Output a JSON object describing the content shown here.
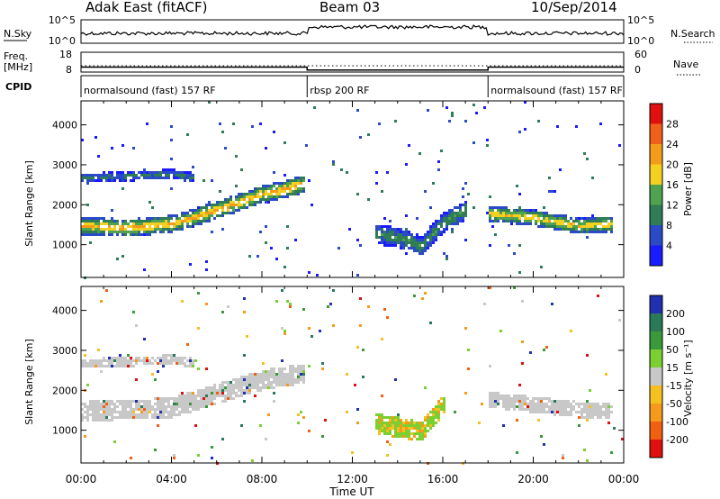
{
  "header": {
    "title": "Adak East (fitACF)",
    "beam": "Beam 03",
    "date": "10/Sep/2014"
  },
  "left_labels": {
    "nsky": "N.Sky",
    "freq": "Freq.",
    "freq_unit": "[MHz]",
    "cpid": "CPID"
  },
  "right_labels": {
    "nsearch": "N.Search",
    "nave": "Nave"
  },
  "noise_axis": {
    "left_ticks": [
      "10^5",
      "10^0"
    ],
    "right_ticks": [
      "10^5",
      "10^0"
    ]
  },
  "freq_axis": {
    "left_ticks": [
      "18",
      "8"
    ],
    "right_ticks": [
      "60",
      "0"
    ]
  },
  "cpid_segments": [
    {
      "label": "normalsound (fast) 157 RF",
      "start_hour": 0,
      "end_hour": 10
    },
    {
      "label": "rbsp 200 RF",
      "start_hour": 10,
      "end_hour": 18
    },
    {
      "label": "normalsound (fast) 157 RF",
      "start_hour": 18,
      "end_hour": 24
    }
  ],
  "power_panel": {
    "ylabel": "Slant Range [km]",
    "yticks": [
      1000,
      2000,
      3000,
      4000
    ],
    "colorbar_label": "Power [dB]",
    "colorbar_ticks": [
      4,
      8,
      12,
      16,
      20,
      24,
      28
    ],
    "colors": [
      "#1a1aff",
      "#2a4ac8",
      "#2e7d55",
      "#4fa24f",
      "#f4d020",
      "#f59b1a",
      "#f0601a",
      "#e01010"
    ]
  },
  "velocity_panel": {
    "ylabel": "Slant Range [km]",
    "yticks": [
      1000,
      2000,
      3000,
      4000
    ],
    "colorbar_label": "Velocity [m s⁻¹]",
    "colorbar_ticks": [
      200,
      100,
      50,
      15,
      -15,
      -50,
      -100,
      -200
    ],
    "colors": [
      "#2030b0",
      "#2a7a5a",
      "#3a9a3a",
      "#7ad030",
      "#c8c8c8",
      "#f5c020",
      "#f59a1a",
      "#f06010",
      "#e01010"
    ]
  },
  "xaxis": {
    "label": "Time UT",
    "ticks": [
      "00:00",
      "04:00",
      "08:00",
      "12:00",
      "16:00",
      "20:00",
      "00:00"
    ]
  },
  "chart_data": {
    "type": "heatmap",
    "title": "Adak East (fitACF)",
    "xlabel": "Time UT",
    "ylabel": "Slant Range [km]",
    "xlim": [
      0,
      24
    ],
    "ylim": [
      180,
      4600
    ],
    "mode_changes_hours": [
      10,
      18
    ],
    "frequency_mhz": [
      {
        "start_hour": 0,
        "end_hour": 10,
        "value": 10.5
      },
      {
        "start_hour": 10,
        "end_hour": 18,
        "value": 9.0
      },
      {
        "start_hour": 18,
        "end_hour": 24,
        "value": 10.5
      }
    ],
    "power_db_echo_bands": [
      {
        "name": "main band",
        "points": [
          [
            0,
            1500
          ],
          [
            2,
            1450
          ],
          [
            4,
            1550
          ],
          [
            6,
            1900
          ],
          [
            8,
            2300
          ],
          [
            9.5,
            2500
          ],
          [
            9.8,
            2550
          ]
        ],
        "halfwidth_km": 220,
        "peak_db": 22
      },
      {
        "name": "upper band",
        "points": [
          [
            0,
            2700
          ],
          [
            2,
            2750
          ],
          [
            4,
            2800
          ],
          [
            5,
            2700
          ]
        ],
        "halfwidth_km": 120,
        "peak_db": 10
      },
      {
        "name": "rbsp echoes",
        "points": [
          [
            13,
            1300
          ],
          [
            14,
            1200
          ],
          [
            15,
            1000
          ],
          [
            16,
            1600
          ],
          [
            17,
            1900
          ]
        ],
        "halfwidth_km": 250,
        "peak_db": 12
      },
      {
        "name": "late band",
        "points": [
          [
            18,
            1800
          ],
          [
            20,
            1700
          ],
          [
            22,
            1500
          ],
          [
            23.5,
            1550
          ]
        ],
        "halfwidth_km": 200,
        "peak_db": 20
      }
    ],
    "velocity_ms_echo_bands": [
      {
        "name": "ground scatter",
        "points": [
          [
            0,
            1500
          ],
          [
            4,
            1600
          ],
          [
            8,
            2300
          ],
          [
            9.8,
            2450
          ]
        ],
        "halfwidth_km": 250,
        "velocity": 0
      },
      {
        "name": "upper band",
        "points": [
          [
            0,
            2700
          ],
          [
            4,
            2800
          ],
          [
            5,
            2700
          ]
        ],
        "halfwidth_km": 120,
        "velocity": 0
      },
      {
        "name": "rbsp echoes",
        "points": [
          [
            13,
            1200
          ],
          [
            15,
            1000
          ],
          [
            16,
            1700
          ]
        ],
        "halfwidth_km": 250,
        "velocity": 30
      },
      {
        "name": "late band",
        "points": [
          [
            18,
            1800
          ],
          [
            22,
            1550
          ],
          [
            23.5,
            1550
          ]
        ],
        "halfwidth_km": 200,
        "velocity": 0
      }
    ]
  }
}
